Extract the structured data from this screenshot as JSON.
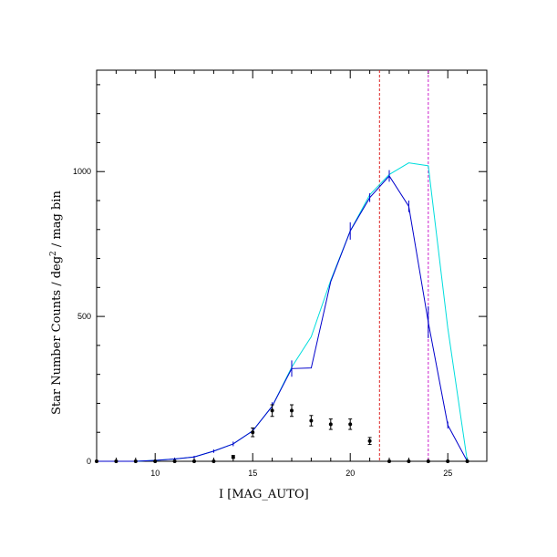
{
  "chart_data": {
    "type": "line",
    "xlabel": "I [MAG_AUTO]",
    "ylabel_main": "Star Number Counts / deg",
    "ylabel_sup": "2",
    "ylabel_tail": " / mag bin",
    "xlim": [
      7,
      27
    ],
    "ylim": [
      0,
      1350
    ],
    "x_ticks": [
      10,
      15,
      20,
      25
    ],
    "y_ticks": [
      0,
      500,
      1000
    ],
    "grid": false,
    "vlines": [
      {
        "x": 21.5,
        "color": "#dd2222"
      },
      {
        "x": 24.0,
        "color": "#cc22cc"
      }
    ],
    "series": [
      {
        "color": "#00dddd",
        "x": [
          7,
          8,
          9,
          10,
          11,
          12,
          13,
          14,
          15,
          16,
          17,
          18,
          19,
          20,
          21,
          22,
          23,
          24,
          25,
          26
        ],
        "y": [
          0,
          0,
          0,
          3,
          8,
          15,
          35,
          60,
          105,
          190,
          325,
          430,
          625,
          795,
          920,
          990,
          1030,
          1020,
          460,
          0
        ]
      },
      {
        "color": "#0000cc",
        "x": [
          7,
          8,
          9,
          10,
          11,
          12,
          13,
          14,
          15,
          16,
          17,
          18,
          19,
          20,
          21,
          22,
          23,
          24,
          25,
          26
        ],
        "y": [
          0,
          0,
          0,
          3,
          8,
          15,
          35,
          60,
          105,
          190,
          320,
          322,
          620,
          795,
          910,
          985,
          880,
          480,
          125,
          0
        ],
        "err": [
          0,
          0,
          0,
          3,
          3,
          4,
          6,
          8,
          10,
          14,
          28,
          0,
          0,
          30,
          15,
          20,
          20,
          55,
          12,
          0
        ]
      }
    ],
    "points": {
      "color": "#000000",
      "x": [
        7,
        8,
        9,
        10,
        11,
        12,
        13,
        14,
        15,
        16,
        17,
        18,
        19,
        20,
        21,
        22,
        23,
        24,
        25,
        26
      ],
      "y": [
        0,
        0,
        0,
        0,
        0,
        0,
        0,
        15,
        100,
        175,
        175,
        140,
        128,
        128,
        70,
        0,
        0,
        0,
        0,
        0
      ],
      "err": [
        0,
        0,
        0,
        0,
        0,
        0,
        0,
        5,
        15,
        20,
        20,
        18,
        18,
        18,
        12,
        0,
        0,
        0,
        0,
        0
      ]
    }
  }
}
